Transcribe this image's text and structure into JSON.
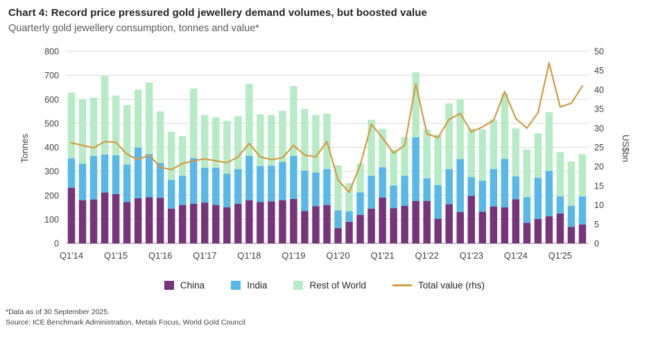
{
  "header": {
    "title": "Chart 4: Record price pressured gold jewellery demand volumes, but boosted value",
    "subtitle": "Quarterly gold jewellery consumption, tonnes and value*"
  },
  "chart_data": {
    "type": "bar",
    "subtype": "stacked-bars-with-line-overlay",
    "grid": true,
    "legend_position": "bottom",
    "categories": [
      "Q1'14",
      "Q2'14",
      "Q3'14",
      "Q4'14",
      "Q1'15",
      "Q2'15",
      "Q3'15",
      "Q4'15",
      "Q1'16",
      "Q2'16",
      "Q3'16",
      "Q4'16",
      "Q1'17",
      "Q2'17",
      "Q3'17",
      "Q4'17",
      "Q1'18",
      "Q2'18",
      "Q3'18",
      "Q4'18",
      "Q1'19",
      "Q2'19",
      "Q3'19",
      "Q4'19",
      "Q1'20",
      "Q2'20",
      "Q3'20",
      "Q4'20",
      "Q1'21",
      "Q2'21",
      "Q3'21",
      "Q4'21",
      "Q1'22",
      "Q2'22",
      "Q3'22",
      "Q4'22",
      "Q1'23",
      "Q2'23",
      "Q3'23",
      "Q4'23",
      "Q1'24",
      "Q2'24",
      "Q3'24",
      "Q4'24",
      "Q1'25",
      "Q2'25",
      "Q3'25"
    ],
    "x_tick_labels": [
      "Q1'14",
      "Q1'15",
      "Q1'16",
      "Q1'17",
      "Q1'18",
      "Q1'19",
      "Q1'20",
      "Q1'21",
      "Q1'22",
      "Q1'23",
      "Q1'24",
      "Q1'25"
    ],
    "series": [
      {
        "name": "China",
        "type": "bar",
        "axis": "left",
        "color": "#76357B",
        "values": [
          232,
          180,
          183,
          212,
          205,
          172,
          188,
          192,
          190,
          145,
          160,
          165,
          170,
          160,
          150,
          165,
          180,
          172,
          175,
          180,
          185,
          135,
          155,
          160,
          64,
          90,
          119,
          145,
          191,
          147,
          157,
          177,
          177,
          103,
          163,
          131,
          198,
          132,
          154,
          150,
          184,
          86,
          102,
          113,
          125,
          69,
          79
        ]
      },
      {
        "name": "India",
        "type": "bar",
        "axis": "left",
        "color": "#58B8E8",
        "values": [
          122,
          152,
          181,
          158,
          162,
          156,
          211,
          180,
          145,
          120,
          122,
          190,
          145,
          155,
          140,
          145,
          185,
          150,
          148,
          160,
          180,
          168,
          140,
          150,
          74,
          44,
          94,
          137,
          126,
          94,
          125,
          265,
          94,
          140,
          146,
          220,
          78,
          129,
          156,
          202,
          95,
          107,
          171,
          189,
          71,
          88,
          117
        ]
      },
      {
        "name": "Rest of World",
        "type": "bar",
        "axis": "left",
        "color": "#B7EBC6",
        "values": [
          274,
          268,
          243,
          327,
          249,
          248,
          241,
          298,
          215,
          200,
          165,
          290,
          220,
          210,
          220,
          220,
          300,
          216,
          212,
          212,
          290,
          257,
          240,
          230,
          188,
          117,
          120,
          233,
          160,
          149,
          161,
          271,
          204,
          210,
          274,
          251,
          202,
          215,
          206,
          271,
          200,
          198,
          186,
          245,
          184,
          184,
          175
        ]
      },
      {
        "name": "Total value (rhs)",
        "type": "line",
        "axis": "right",
        "color": "#D39B43",
        "values": [
          26.2,
          25.5,
          24.9,
          26.5,
          26.3,
          23.2,
          21.8,
          23.0,
          19.8,
          19.2,
          20.8,
          21.5,
          22.0,
          21.5,
          21.0,
          22.5,
          26.0,
          22.5,
          21.8,
          22.3,
          25.5,
          23.0,
          22.5,
          26.5,
          16.5,
          13.3,
          20.4,
          31.0,
          27.5,
          23.5,
          25.5,
          41.5,
          28.5,
          27.5,
          32.3,
          33.8,
          29.0,
          30.3,
          32.0,
          39.5,
          32.5,
          30.0,
          34.0,
          47.0,
          35.5,
          36.5,
          41.0
        ]
      }
    ],
    "left_axis": {
      "label": "Tonnes",
      "min": 0,
      "max": 800,
      "step": 100,
      "ticks": [
        0,
        100,
        200,
        300,
        400,
        500,
        600,
        700,
        800
      ]
    },
    "right_axis": {
      "label": "US$bn",
      "min": 0,
      "max": 50,
      "step": 5,
      "ticks": [
        0,
        5,
        10,
        15,
        20,
        25,
        30,
        35,
        40,
        45,
        50
      ]
    }
  },
  "footnotes": {
    "line1": "*Data as of 30 September 2025.",
    "line2": "Source: ICE Benchmark Administration, Metals Focus, World Gold Council"
  }
}
